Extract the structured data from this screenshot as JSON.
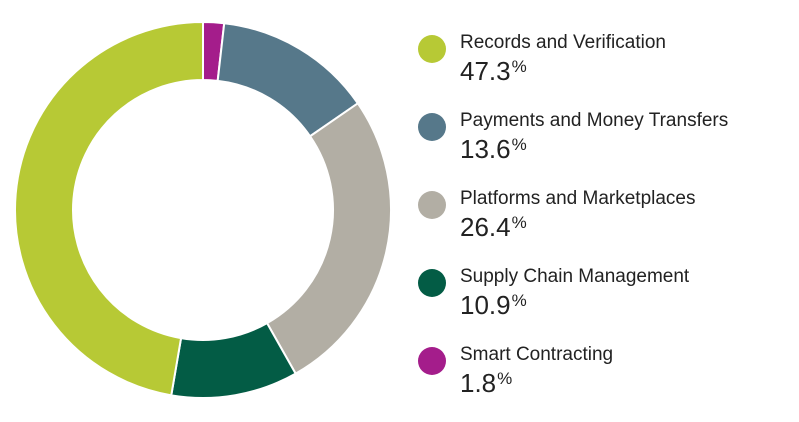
{
  "chart_data": {
    "type": "pie",
    "variant": "donut",
    "title": "",
    "unit": "%",
    "categories": [
      "Records and Verification",
      "Payments and Money Transfers",
      "Platforms and Marketplaces",
      "Supply Chain Management",
      "Smart Contracting"
    ],
    "values": [
      47.3,
      13.6,
      26.4,
      10.9,
      1.8
    ],
    "colors": [
      "#b7c935",
      "#56788a",
      "#b2aea4",
      "#035c45",
      "#a41d8b"
    ],
    "slice_order_clockwise_from_top": [
      "Smart Contracting",
      "Payments and Money Transfers",
      "Platforms and Marketplaces",
      "Supply Chain Management",
      "Records and Verification"
    ],
    "legend_placement": "right"
  },
  "legend": {
    "items": [
      {
        "label": "Records and Verification",
        "value": "47.3",
        "unit": "%",
        "color": "#b7c935"
      },
      {
        "label": "Payments and Money Transfers",
        "value": "13.6",
        "unit": "%",
        "color": "#56788a"
      },
      {
        "label": "Platforms and Marketplaces",
        "value": "26.4",
        "unit": "%",
        "color": "#b2aea4"
      },
      {
        "label": "Supply Chain Management",
        "value": "10.9",
        "unit": "%",
        "color": "#035c45"
      },
      {
        "label": "Smart Contracting",
        "value": "1.8",
        "unit": "%",
        "color": "#a41d8b"
      }
    ]
  }
}
